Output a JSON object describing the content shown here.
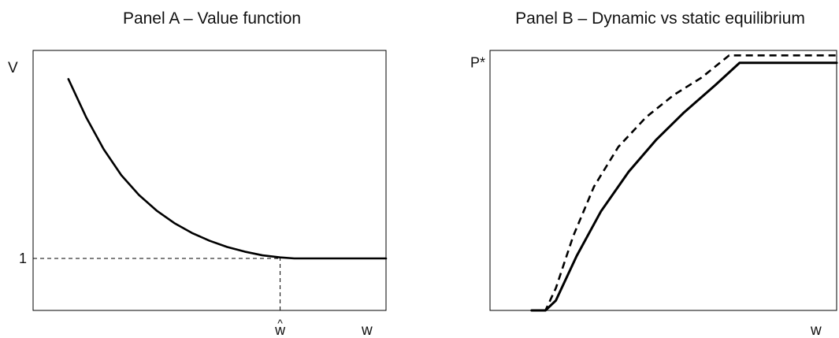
{
  "colors": {
    "ink": "#000000",
    "background": "#ffffff"
  },
  "chart_data": [
    {
      "type": "line",
      "title": "Panel A – Value function",
      "xlabel": "w",
      "ylabel": "V",
      "xlim": [
        0,
        10
      ],
      "ylim": [
        0,
        5
      ],
      "grid": false,
      "legend": "none",
      "x_tick": {
        "value": 7.0,
        "label": "w",
        "mark": "^"
      },
      "y_tick": {
        "value": 1,
        "label": "1"
      },
      "reference_lines": [
        {
          "orientation": "horizontal",
          "value": 1,
          "from": 0,
          "to": 7.0,
          "style": "dashed"
        },
        {
          "orientation": "vertical",
          "value": 7.0,
          "from": 0,
          "to": 1,
          "style": "dashed"
        }
      ],
      "series": [
        {
          "style": "solid",
          "x": [
            1.0,
            1.5,
            2.0,
            2.5,
            3.0,
            3.5,
            4.0,
            4.5,
            5.0,
            5.5,
            6.0,
            6.5,
            7.0,
            7.4,
            8.0,
            9.0,
            10.0
          ],
          "y": [
            4.45,
            3.72,
            3.1,
            2.6,
            2.22,
            1.92,
            1.68,
            1.49,
            1.34,
            1.22,
            1.13,
            1.06,
            1.02,
            1.0,
            1.0,
            1.0,
            1.0
          ]
        }
      ]
    },
    {
      "type": "line",
      "title": "Panel B – Dynamic vs static equilibrium",
      "xlabel": "w",
      "ylabel": "",
      "xlim": [
        0,
        10
      ],
      "ylim": [
        0,
        1.05
      ],
      "grid": false,
      "legend": "none",
      "y_tick": {
        "value": 1.0,
        "label": "P*"
      },
      "series": [
        {
          "style": "solid",
          "x": [
            1.2,
            1.6,
            1.9,
            2.5,
            3.2,
            4.0,
            4.8,
            5.6,
            6.5,
            7.2,
            8.0,
            9.0,
            10.0
          ],
          "y": [
            0.0,
            0.0,
            0.04,
            0.22,
            0.4,
            0.56,
            0.69,
            0.8,
            0.91,
            1.0,
            1.0,
            1.0,
            1.0
          ]
        },
        {
          "style": "dashed",
          "x": [
            1.2,
            1.6,
            1.9,
            2.4,
            3.0,
            3.7,
            4.5,
            5.3,
            6.1,
            6.9,
            8.0,
            9.0,
            10.0
          ],
          "y": [
            0.0,
            0.0,
            0.09,
            0.3,
            0.5,
            0.66,
            0.78,
            0.87,
            0.94,
            1.03,
            1.03,
            1.03,
            1.03
          ]
        }
      ]
    }
  ]
}
